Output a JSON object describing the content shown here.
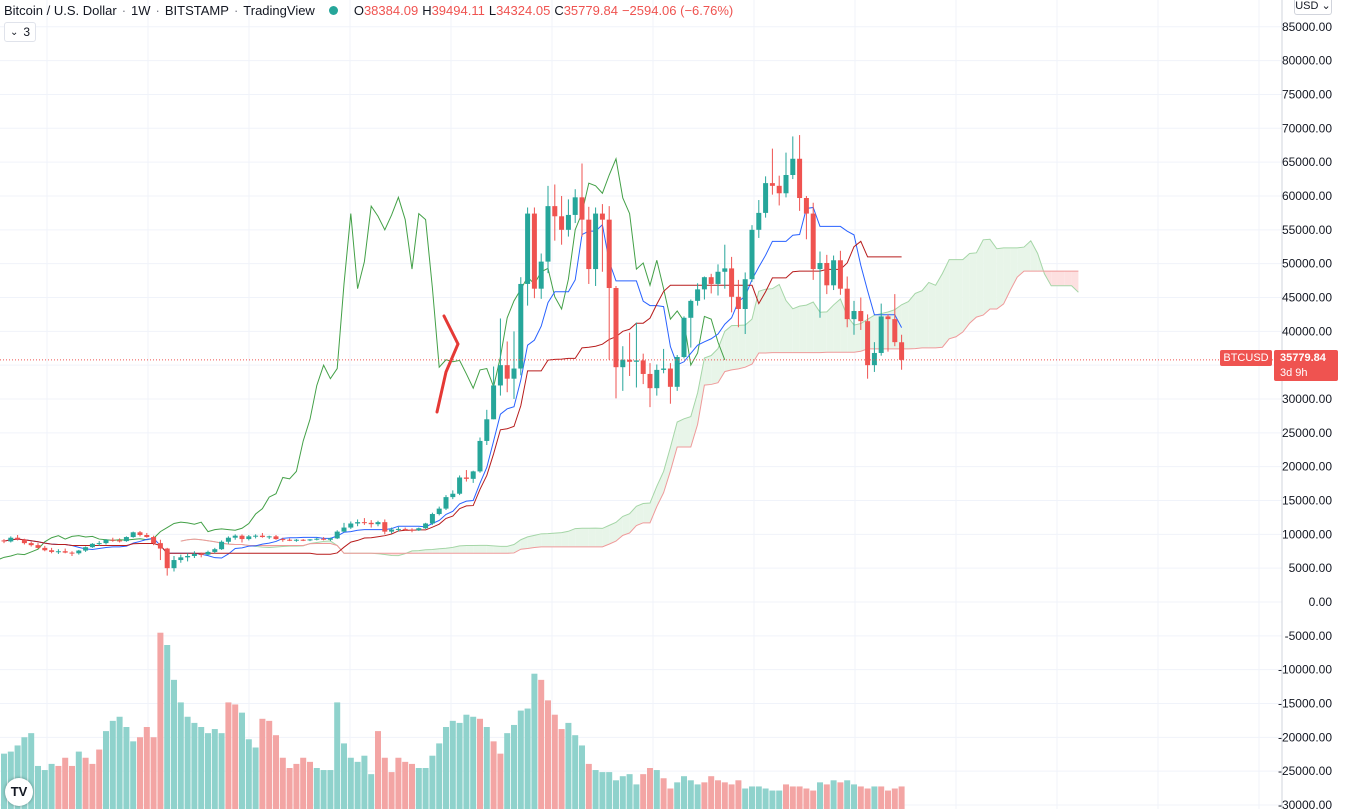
{
  "header": {
    "symbol_name": "Bitcoin / U.S. Dollar",
    "interval": "1W",
    "exchange": "BITSTAMP",
    "source": "TradingView",
    "o_label": "O",
    "open": "38384.09",
    "h_label": "H",
    "high": "39494.11",
    "l_label": "L",
    "low": "34324.05",
    "c_label": "C",
    "close": "35779.84",
    "change": "−2594.06 (−6.76%)",
    "indicator_count": "3",
    "currency": "USD"
  },
  "price_tag": {
    "symbol": "BTCUSD",
    "price": "35779.84",
    "countdown": "3d 9h"
  },
  "logo_text": "TV",
  "colors": {
    "up": "#26a69a",
    "down": "#ef5350",
    "volume_up": "#8fd2cc",
    "volume_down": "#f3a5a4",
    "conversion_line": "#2962ff",
    "base_line": "#b71c1c",
    "lagging_span": "#43a047",
    "cloud_bull": "#e8f5e9",
    "cloud_bear": "#fde0e0",
    "grid": "#f0f3fa",
    "axis_text": "#131722",
    "drawing": "#e53935"
  },
  "chart_data": {
    "type": "candlestick",
    "indicators": [
      "Ichimoku Cloud",
      "Volume"
    ],
    "price_scale": {
      "range": [
        0,
        88000
      ],
      "ticks": [
        "85000.00",
        "80000.00",
        "75000.00",
        "70000.00",
        "65000.00",
        "60000.00",
        "55000.00",
        "50000.00",
        "45000.00",
        "40000.00",
        "35000.00",
        "30000.00",
        "25000.00",
        "20000.00",
        "15000.00",
        "10000.00",
        "5000.00",
        "0.00",
        "-5000.00",
        "-10000.00",
        "-15000.00",
        "-20000.00",
        "-25000.00",
        "-30000.00"
      ]
    },
    "last_price": 35779.84,
    "candles": [
      [
        9100,
        9300,
        8700,
        8950
      ],
      [
        8950,
        9700,
        8800,
        9500
      ],
      [
        9500,
        9900,
        9100,
        9250
      ],
      [
        9250,
        9350,
        8500,
        8700
      ],
      [
        8700,
        8900,
        8200,
        8400
      ],
      [
        8400,
        8700,
        7900,
        8000
      ],
      [
        8000,
        8300,
        7500,
        7650
      ],
      [
        7650,
        8000,
        7200,
        7400
      ],
      [
        7400,
        7800,
        7100,
        7500
      ],
      [
        7500,
        7900,
        7200,
        7300
      ],
      [
        7300,
        7500,
        6800,
        7200
      ],
      [
        7200,
        7700,
        7000,
        7600
      ],
      [
        7600,
        8200,
        7400,
        8100
      ],
      [
        8100,
        8700,
        8000,
        8600
      ],
      [
        8600,
        9000,
        8300,
        8700
      ],
      [
        8700,
        9300,
        8500,
        9200
      ],
      [
        9200,
        9500,
        8900,
        9100
      ],
      [
        9100,
        9400,
        8800,
        9000
      ],
      [
        9000,
        9700,
        8900,
        9600
      ],
      [
        9600,
        10400,
        9500,
        10300
      ],
      [
        10300,
        10500,
        9700,
        9900
      ],
      [
        9900,
        10200,
        9500,
        9600
      ],
      [
        9600,
        9800,
        8400,
        8700
      ],
      [
        8700,
        9200,
        6200,
        7900
      ],
      [
        7900,
        8000,
        3900,
        5000
      ],
      [
        5000,
        6800,
        4500,
        6200
      ],
      [
        6200,
        7000,
        5800,
        6600
      ],
      [
        6600,
        7200,
        6000,
        6800
      ],
      [
        6800,
        7500,
        6500,
        7100
      ],
      [
        7100,
        7300,
        6600,
        7000
      ],
      [
        7000,
        7600,
        6900,
        7400
      ],
      [
        7400,
        8000,
        7200,
        7800
      ],
      [
        7800,
        9100,
        7700,
        8900
      ],
      [
        8900,
        9700,
        8600,
        9500
      ],
      [
        9500,
        10000,
        9200,
        9800
      ],
      [
        9800,
        10000,
        8800,
        9300
      ],
      [
        9300,
        9900,
        9100,
        9700
      ],
      [
        9700,
        10000,
        9400,
        9800
      ],
      [
        9800,
        10200,
        9500,
        9600
      ],
      [
        9600,
        9800,
        9300,
        9700
      ],
      [
        9700,
        9900,
        9200,
        9300
      ],
      [
        9300,
        9500,
        8900,
        9200
      ],
      [
        9200,
        9400,
        9000,
        9100
      ],
      [
        9100,
        9300,
        8900,
        9200
      ],
      [
        9200,
        9300,
        9000,
        9150
      ],
      [
        9150,
        9300,
        9000,
        9250
      ],
      [
        9250,
        9500,
        9100,
        9350
      ],
      [
        9350,
        9600,
        9100,
        9200
      ],
      [
        9200,
        9500,
        9000,
        9400
      ],
      [
        9400,
        10600,
        9300,
        10400
      ],
      [
        10400,
        11700,
        10300,
        11000
      ],
      [
        11000,
        11900,
        10800,
        11600
      ],
      [
        11600,
        12200,
        11200,
        11800
      ],
      [
        11800,
        12400,
        11400,
        11700
      ],
      [
        11700,
        12100,
        11000,
        11500
      ],
      [
        11500,
        12000,
        11200,
        11800
      ],
      [
        11800,
        12200,
        10000,
        10400
      ],
      [
        10400,
        11000,
        10100,
        10700
      ],
      [
        10700,
        11100,
        10400,
        10800
      ],
      [
        10800,
        11000,
        10500,
        10700
      ],
      [
        10700,
        10900,
        10300,
        10600
      ],
      [
        10600,
        11000,
        10500,
        10900
      ],
      [
        10900,
        11700,
        10800,
        11600
      ],
      [
        11600,
        13200,
        11400,
        13000
      ],
      [
        13000,
        14100,
        12800,
        13800
      ],
      [
        13800,
        15800,
        13600,
        15500
      ],
      [
        15500,
        16500,
        15200,
        16000
      ],
      [
        16000,
        18700,
        15800,
        18400
      ],
      [
        18400,
        19500,
        17800,
        18200
      ],
      [
        18200,
        19400,
        17600,
        19300
      ],
      [
        19300,
        24300,
        19100,
        23800
      ],
      [
        23800,
        28400,
        23200,
        27000
      ],
      [
        27000,
        34800,
        27000,
        32000
      ],
      [
        32000,
        41900,
        30500,
        35000
      ],
      [
        35000,
        38500,
        31000,
        33000
      ],
      [
        33000,
        40000,
        30000,
        34500
      ],
      [
        34500,
        48000,
        33500,
        47000
      ],
      [
        47000,
        58300,
        43800,
        57400
      ],
      [
        57400,
        58300,
        44900,
        46300
      ],
      [
        46300,
        51500,
        44800,
        50300
      ],
      [
        50300,
        61500,
        48600,
        58500
      ],
      [
        58500,
        61700,
        53400,
        57000
      ],
      [
        57000,
        60000,
        52800,
        55000
      ],
      [
        55000,
        59500,
        54000,
        57200
      ],
      [
        57200,
        61000,
        56000,
        59800
      ],
      [
        59800,
        64800,
        54000,
        56500
      ],
      [
        56500,
        58400,
        47000,
        49200
      ],
      [
        49200,
        58300,
        46700,
        57400
      ],
      [
        57400,
        58800,
        48800,
        56500
      ],
      [
        56500,
        58500,
        35800,
        46400
      ],
      [
        46400,
        46700,
        30100,
        34700
      ],
      [
        34700,
        37800,
        31200,
        35800
      ],
      [
        35800,
        39800,
        33400,
        35500
      ],
      [
        35500,
        41300,
        31700,
        35700
      ],
      [
        35700,
        36700,
        32200,
        33700
      ],
      [
        33700,
        35300,
        28800,
        31600
      ],
      [
        31600,
        35100,
        30500,
        34300
      ],
      [
        34300,
        37400,
        33800,
        34500
      ],
      [
        34500,
        35300,
        29300,
        31800
      ],
      [
        31800,
        36500,
        31200,
        36200
      ],
      [
        36200,
        42200,
        36000,
        42000
      ],
      [
        42000,
        44700,
        37600,
        44500
      ],
      [
        44500,
        47100,
        43800,
        46200
      ],
      [
        46200,
        48100,
        44700,
        48000
      ],
      [
        48000,
        48500,
        45600,
        47000
      ],
      [
        47000,
        49900,
        45300,
        48800
      ],
      [
        48800,
        52800,
        46300,
        49300
      ],
      [
        49300,
        51000,
        42800,
        45100
      ],
      [
        45100,
        47600,
        40600,
        43300
      ],
      [
        43300,
        48700,
        39600,
        47700
      ],
      [
        47700,
        55700,
        47300,
        55000
      ],
      [
        55000,
        59400,
        53800,
        57500
      ],
      [
        57500,
        62900,
        56800,
        61900
      ],
      [
        61900,
        67000,
        60200,
        61500
      ],
      [
        61500,
        63000,
        58600,
        60400
      ],
      [
        60400,
        66400,
        59800,
        63100
      ],
      [
        63100,
        68800,
        62500,
        65500
      ],
      [
        65500,
        69000,
        57800,
        59700
      ],
      [
        59700,
        60000,
        53600,
        57400
      ],
      [
        57400,
        59000,
        47600,
        49200
      ],
      [
        49200,
        51800,
        42000,
        50100
      ],
      [
        50100,
        51300,
        45500,
        46800
      ],
      [
        46800,
        51200,
        46100,
        50500
      ],
      [
        50500,
        51900,
        45400,
        46300
      ],
      [
        46300,
        48100,
        40600,
        41800
      ],
      [
        41800,
        44500,
        39500,
        43000
      ],
      [
        43000,
        45000,
        40200,
        41500
      ],
      [
        41500,
        42500,
        33000,
        35000
      ],
      [
        35000,
        38400,
        34000,
        36800
      ],
      [
        36800,
        44100,
        36400,
        42200
      ],
      [
        42200,
        42500,
        37000,
        41800
      ],
      [
        41800,
        45500,
        37800,
        38400
      ],
      [
        38384,
        39494,
        34324,
        35779
      ]
    ],
    "volume": [
      [
        27,
        "up"
      ],
      [
        28,
        "up"
      ],
      [
        31,
        "up"
      ],
      [
        35,
        "up"
      ],
      [
        37,
        "up"
      ],
      [
        21,
        "up"
      ],
      [
        19,
        "up"
      ],
      [
        22,
        "up"
      ],
      [
        21,
        "down"
      ],
      [
        25,
        "down"
      ],
      [
        21,
        "down"
      ],
      [
        28,
        "up"
      ],
      [
        25,
        "down"
      ],
      [
        22,
        "down"
      ],
      [
        29,
        "down"
      ],
      [
        38,
        "up"
      ],
      [
        43,
        "up"
      ],
      [
        45,
        "up"
      ],
      [
        40,
        "up"
      ],
      [
        33,
        "up"
      ],
      [
        35,
        "down"
      ],
      [
        40,
        "down"
      ],
      [
        35,
        "down"
      ],
      [
        86,
        "down"
      ],
      [
        80,
        "up"
      ],
      [
        63,
        "up"
      ],
      [
        52,
        "up"
      ],
      [
        45,
        "up"
      ],
      [
        42,
        "up"
      ],
      [
        40,
        "up"
      ],
      [
        37,
        "up"
      ],
      [
        39,
        "up"
      ],
      [
        37,
        "up"
      ],
      [
        52,
        "down"
      ],
      [
        51,
        "down"
      ],
      [
        47,
        "up"
      ],
      [
        34,
        "up"
      ],
      [
        30,
        "up"
      ],
      [
        44,
        "down"
      ],
      [
        43,
        "down"
      ],
      [
        36,
        "down"
      ],
      [
        25,
        "down"
      ],
      [
        20,
        "down"
      ],
      [
        22,
        "down"
      ],
      [
        25,
        "down"
      ],
      [
        23,
        "down"
      ],
      [
        20,
        "up"
      ],
      [
        19,
        "up"
      ],
      [
        19,
        "up"
      ],
      [
        52,
        "up"
      ],
      [
        32,
        "up"
      ],
      [
        25,
        "up"
      ],
      [
        23,
        "up"
      ],
      [
        26,
        "up"
      ],
      [
        17,
        "up"
      ],
      [
        38,
        "down"
      ],
      [
        25,
        "down"
      ],
      [
        18,
        "down"
      ],
      [
        25,
        "down"
      ],
      [
        23,
        "down"
      ],
      [
        22,
        "down"
      ],
      [
        20,
        "up"
      ],
      [
        20,
        "up"
      ],
      [
        26,
        "up"
      ],
      [
        32,
        "up"
      ],
      [
        40,
        "up"
      ],
      [
        43,
        "up"
      ],
      [
        42,
        "up"
      ],
      [
        46,
        "up"
      ],
      [
        45,
        "up"
      ],
      [
        44,
        "down"
      ],
      [
        40,
        "up"
      ],
      [
        33,
        "down"
      ],
      [
        27,
        "down"
      ],
      [
        37,
        "up"
      ],
      [
        41,
        "up"
      ],
      [
        48,
        "up"
      ],
      [
        49,
        "up"
      ],
      [
        66,
        "up"
      ],
      [
        63,
        "down"
      ],
      [
        53,
        "down"
      ],
      [
        46,
        "down"
      ],
      [
        39,
        "down"
      ],
      [
        42,
        "up"
      ],
      [
        36,
        "up"
      ],
      [
        31,
        "up"
      ],
      [
        22,
        "down"
      ],
      [
        19,
        "up"
      ],
      [
        18,
        "up"
      ],
      [
        18,
        "up"
      ],
      [
        14,
        "up"
      ],
      [
        16,
        "up"
      ],
      [
        17,
        "up"
      ],
      [
        12,
        "up"
      ],
      [
        17,
        "down"
      ],
      [
        20,
        "down"
      ],
      [
        19,
        "up"
      ],
      [
        15,
        "down"
      ],
      [
        10,
        "down"
      ],
      [
        13,
        "up"
      ],
      [
        16,
        "up"
      ],
      [
        14,
        "up"
      ],
      [
        12,
        "up"
      ],
      [
        13,
        "down"
      ],
      [
        16,
        "down"
      ],
      [
        14,
        "down"
      ],
      [
        13,
        "down"
      ],
      [
        12,
        "down"
      ],
      [
        14,
        "down"
      ],
      [
        10,
        "up"
      ],
      [
        11,
        "up"
      ],
      [
        11,
        "up"
      ],
      [
        10,
        "up"
      ],
      [
        9,
        "up"
      ],
      [
        9,
        "up"
      ],
      [
        12,
        "down"
      ],
      [
        11,
        "down"
      ],
      [
        11,
        "down"
      ],
      [
        10,
        "down"
      ],
      [
        9,
        "down"
      ],
      [
        13,
        "up"
      ],
      [
        12,
        "down"
      ],
      [
        14,
        "up"
      ],
      [
        13,
        "down"
      ],
      [
        14,
        "up"
      ],
      [
        12,
        "up"
      ],
      [
        11,
        "down"
      ],
      [
        10,
        "down"
      ],
      [
        11,
        "up"
      ],
      [
        11,
        "down"
      ],
      [
        9,
        "down"
      ],
      [
        10,
        "down"
      ],
      [
        11,
        "down"
      ]
    ]
  }
}
